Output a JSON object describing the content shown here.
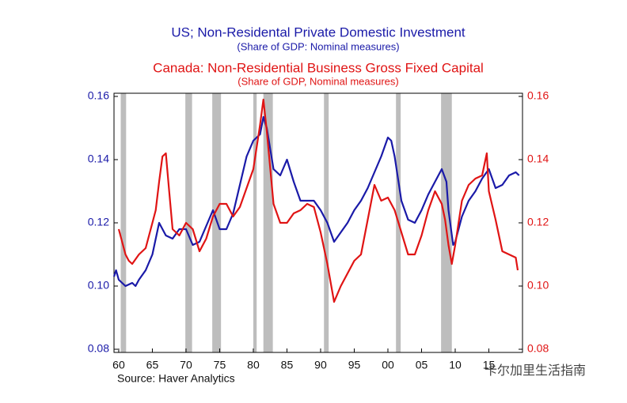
{
  "chart_data": {
    "type": "line",
    "title": "US; Non-Residental Private Domestic Investment",
    "subtitle": "(Share of GDP: Nominal measures)",
    "title2": "Canada: Non-Residential Business Gross Fixed Capital",
    "subtitle2": "(Share of GDP, Nominal measures)",
    "source": "Source: Haver Analytics",
    "watermark": "卡尔加里生活指南",
    "xlim": [
      1959.3,
      2020
    ],
    "xticks": [
      {
        "value": 1960,
        "label": "60"
      },
      {
        "value": 1965,
        "label": "65"
      },
      {
        "value": 1970,
        "label": "70"
      },
      {
        "value": 1975,
        "label": "75"
      },
      {
        "value": 1980,
        "label": "80"
      },
      {
        "value": 1985,
        "label": "85"
      },
      {
        "value": 1990,
        "label": "90"
      },
      {
        "value": 1995,
        "label": "95"
      },
      {
        "value": 2000,
        "label": "00"
      },
      {
        "value": 2005,
        "label": "05"
      },
      {
        "value": 2010,
        "label": "10"
      },
      {
        "value": 2015,
        "label": "15"
      }
    ],
    "ylim": [
      0.079,
      0.161
    ],
    "yticks": [
      0.08,
      {
        "value": 0.1,
        "label": "0.10"
      },
      0.12,
      0.14,
      0.16
    ],
    "y2lim": [
      0.079,
      0.161
    ],
    "y2ticks": [
      0.08,
      {
        "value": 0.1,
        "label": "0.10"
      },
      0.12,
      0.14,
      0.16
    ],
    "recession_color": "#bdbdbd",
    "recessions": [
      [
        1960.3,
        1961.1
      ],
      [
        1969.9,
        1970.9
      ],
      [
        1973.9,
        1975.2
      ],
      [
        1980.0,
        1980.5
      ],
      [
        1981.5,
        1982.9
      ],
      [
        1990.5,
        1991.2
      ],
      [
        2001.2,
        2001.9
      ],
      [
        2007.9,
        2009.5
      ]
    ],
    "series": [
      {
        "color": "#1a1aa8",
        "x": [
          1959.3,
          1959.6,
          1960,
          1961,
          1962,
          1962.5,
          1963,
          1964,
          1965,
          1966,
          1967,
          1968,
          1969,
          1970,
          1971,
          1972,
          1973,
          1974,
          1975,
          1976,
          1977,
          1978,
          1979,
          1980,
          1981,
          1981.5,
          1982,
          1983,
          1984,
          1985,
          1986,
          1987,
          1988,
          1989,
          1990,
          1991,
          1992,
          1993,
          1994,
          1995,
          1996,
          1997,
          1998,
          1999,
          2000,
          2000.5,
          2001,
          2002,
          2003,
          2004,
          2005,
          2006,
          2007,
          2008,
          2008.7,
          2009,
          2009.7,
          2010,
          2011,
          2012,
          2013,
          2014,
          2015,
          2016,
          2017,
          2018,
          2019,
          2019.5
        ],
        "values": [
          0.103,
          0.105,
          0.102,
          0.1,
          0.101,
          0.1,
          0.102,
          0.105,
          0.11,
          0.12,
          0.116,
          0.115,
          0.118,
          0.118,
          0.113,
          0.114,
          0.119,
          0.124,
          0.118,
          0.118,
          0.123,
          0.132,
          0.141,
          0.146,
          0.148,
          0.1535,
          0.15,
          0.137,
          0.135,
          0.14,
          0.133,
          0.127,
          0.127,
          0.127,
          0.124,
          0.12,
          0.114,
          0.117,
          0.12,
          0.124,
          0.127,
          0.131,
          0.136,
          0.141,
          0.147,
          0.146,
          0.141,
          0.127,
          0.121,
          0.12,
          0.124,
          0.129,
          0.133,
          0.137,
          0.133,
          0.124,
          0.113,
          0.114,
          0.122,
          0.127,
          0.13,
          0.134,
          0.137,
          0.131,
          0.132,
          0.135,
          0.136,
          0.135
        ]
      },
      {
        "color": "#e01414",
        "axis": "y2",
        "x": [
          1960,
          1961,
          1961.5,
          1962,
          1963,
          1964,
          1965,
          1965.5,
          1966,
          1966.5,
          1967,
          1967.5,
          1968,
          1969,
          1970,
          1971,
          1972,
          1973,
          1974,
          1975,
          1976,
          1977,
          1978,
          1979,
          1980,
          1981,
          1981.5,
          1982,
          1983,
          1984,
          1985,
          1986,
          1987,
          1988,
          1989,
          1990,
          1991,
          1992,
          1993,
          1994,
          1995,
          1996,
          1997,
          1998,
          1999,
          2000,
          2001,
          2002,
          2003,
          2004,
          2005,
          2006,
          2007,
          2008,
          2008.5,
          2009,
          2009.5,
          2010,
          2011,
          2012,
          2013,
          2014,
          2014.7,
          2015,
          2016,
          2017,
          2018,
          2019,
          2019.3
        ],
        "values": [
          0.118,
          0.11,
          0.108,
          0.107,
          0.11,
          0.112,
          0.12,
          0.124,
          0.133,
          0.141,
          0.142,
          0.13,
          0.118,
          0.116,
          0.12,
          0.118,
          0.111,
          0.115,
          0.122,
          0.126,
          0.126,
          0.122,
          0.125,
          0.131,
          0.137,
          0.151,
          0.159,
          0.149,
          0.126,
          0.12,
          0.12,
          0.123,
          0.124,
          0.126,
          0.125,
          0.117,
          0.107,
          0.095,
          0.1,
          0.104,
          0.108,
          0.11,
          0.121,
          0.132,
          0.127,
          0.128,
          0.124,
          0.117,
          0.11,
          0.11,
          0.116,
          0.124,
          0.13,
          0.126,
          0.121,
          0.113,
          0.107,
          0.113,
          0.127,
          0.132,
          0.134,
          0.135,
          0.142,
          0.13,
          0.121,
          0.111,
          0.11,
          0.109,
          0.105
        ]
      }
    ]
  }
}
